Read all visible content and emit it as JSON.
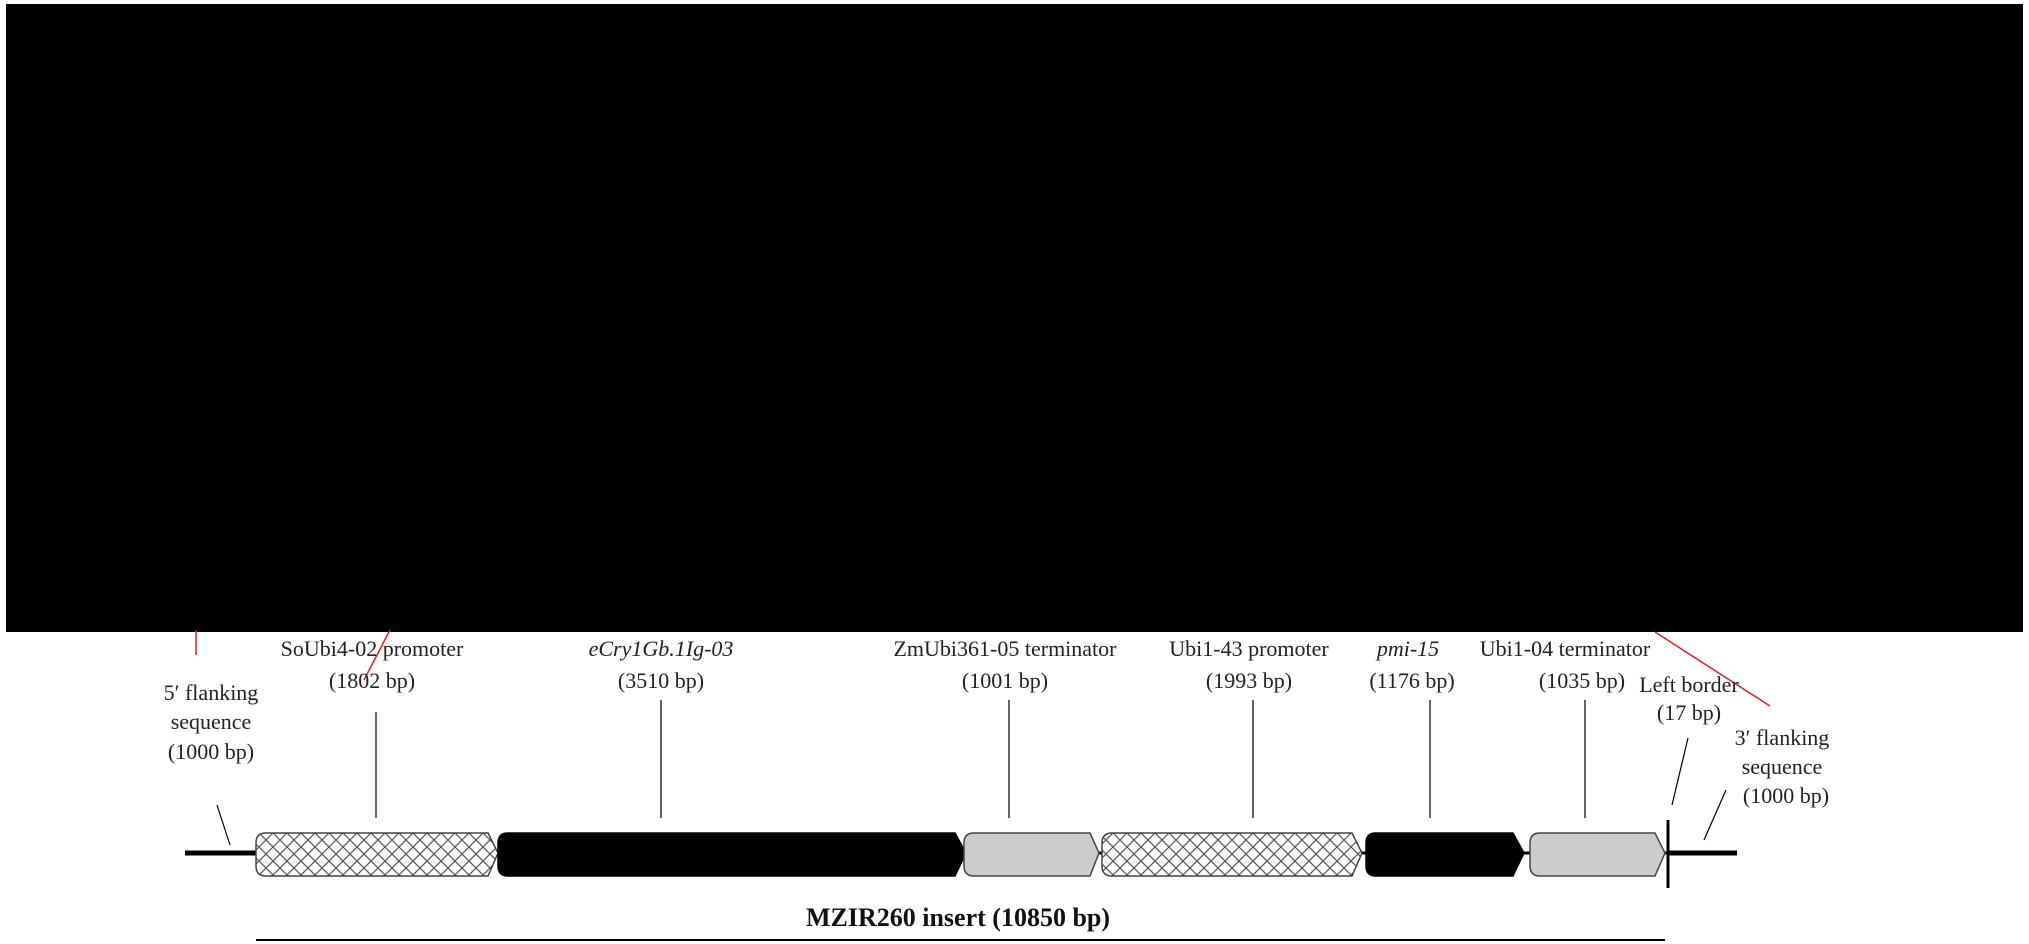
{
  "elements": [
    {
      "key": "soubi4_promoter",
      "name": "SoUbi4-02 promoter",
      "size": "(1802 bp)",
      "italic": false,
      "fill": "crosshatch"
    },
    {
      "key": "ecry1gb",
      "name": "eCry1Gb.1Ig-03",
      "size": "(3510 bp)",
      "italic": true,
      "fill": "black"
    },
    {
      "key": "zmubi361_terminator",
      "name": "ZmUbi361-05 terminator",
      "size": "(1001 bp)",
      "italic": false,
      "fill": "gray"
    },
    {
      "key": "ubi1_promoter",
      "name": "Ubi1-43 promoter",
      "size": "(1993 bp)",
      "italic": false,
      "fill": "crosshatch"
    },
    {
      "key": "pmi15",
      "name": "pmi-15",
      "size": "(1176 bp)",
      "italic": true,
      "fill": "black"
    },
    {
      "key": "ubi1_terminator",
      "name": "Ubi1-04 terminator",
      "size": "(1035 bp)",
      "italic": false,
      "fill": "gray"
    }
  ],
  "five_prime": {
    "line1": "5′ flanking",
    "line2": "sequence",
    "line3": "(1000 bp)"
  },
  "left_border": {
    "line1": "Left border",
    "line2": "(17 bp)"
  },
  "three_prime": {
    "line1": "3′ flanking",
    "line2": "sequence",
    "line3": "(1000 bp)"
  },
  "insert_label": "MZIR260 insert (10850 bp)",
  "colors": {
    "gray_fill": "#cccccc",
    "black_fill": "#000000",
    "crosshatch_bg": "#ffffff",
    "redaction": "#000000",
    "red_line": "#e02020"
  }
}
